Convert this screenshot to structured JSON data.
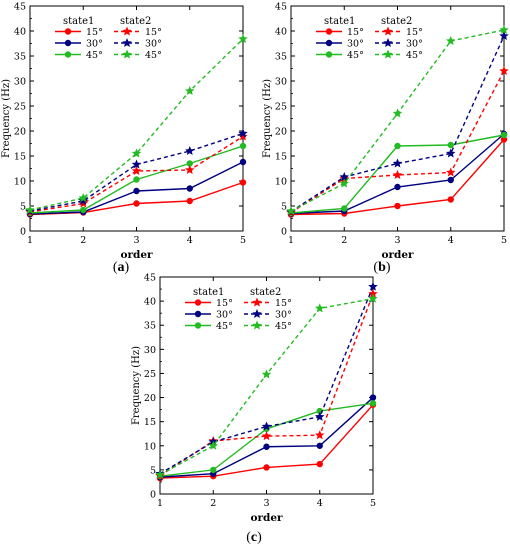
{
  "chart_data": [
    {
      "panel": "(a)",
      "type": "line",
      "xlabel": "order",
      "ylabel": "Frequency (Hz)",
      "x": [
        1,
        2,
        3,
        4,
        5
      ],
      "xlim": [
        1,
        5
      ],
      "ylim": [
        0,
        45
      ],
      "xticks": [
        1,
        2,
        3,
        4,
        5
      ],
      "yticks": [
        0,
        5,
        10,
        15,
        20,
        25,
        30,
        35,
        40,
        45
      ],
      "legend_headers": [
        "state1",
        "state2"
      ],
      "legend_position": "top-left",
      "series": [
        {
          "name": "15°",
          "state": "state1",
          "color": "#ff0000",
          "dash": "solid",
          "marker": "circle",
          "values": [
            3.3,
            3.7,
            5.5,
            6.0,
            9.7
          ]
        },
        {
          "name": "30°",
          "state": "state1",
          "color": "#000080",
          "dash": "solid",
          "marker": "circle",
          "values": [
            3.4,
            3.8,
            8.0,
            8.5,
            13.8
          ]
        },
        {
          "name": "45°",
          "state": "state1",
          "color": "#22bb22",
          "dash": "solid",
          "marker": "circle",
          "values": [
            3.6,
            4.2,
            10.3,
            13.5,
            17.0
          ]
        },
        {
          "name": "15°",
          "state": "state2",
          "color": "#ff0000",
          "dash": "dashed",
          "marker": "star",
          "values": [
            3.8,
            5.5,
            12.0,
            12.2,
            18.9
          ]
        },
        {
          "name": "30°",
          "state": "state2",
          "color": "#000080",
          "dash": "dashed",
          "marker": "star",
          "values": [
            4.0,
            6.0,
            13.3,
            16.0,
            19.5
          ]
        },
        {
          "name": "45°",
          "state": "state2",
          "color": "#22bb22",
          "dash": "dashed",
          "marker": "star",
          "values": [
            4.2,
            6.6,
            15.5,
            28.0,
            38.4
          ]
        }
      ]
    },
    {
      "panel": "(b)",
      "type": "line",
      "xlabel": "order",
      "ylabel": "Frequency (Hz)",
      "x": [
        1,
        2,
        3,
        4,
        5
      ],
      "xlim": [
        1,
        5
      ],
      "ylim": [
        0,
        45
      ],
      "xticks": [
        1,
        2,
        3,
        4,
        5
      ],
      "yticks": [
        0,
        5,
        10,
        15,
        20,
        25,
        30,
        35,
        40,
        45
      ],
      "legend_headers": [
        "state1",
        "state2"
      ],
      "legend_position": "top-left",
      "series": [
        {
          "name": "15°",
          "state": "state1",
          "color": "#ff0000",
          "dash": "solid",
          "marker": "circle",
          "values": [
            3.3,
            3.5,
            5.0,
            6.3,
            18.3
          ]
        },
        {
          "name": "30°",
          "state": "state1",
          "color": "#000080",
          "dash": "solid",
          "marker": "circle",
          "values": [
            3.5,
            4.0,
            8.8,
            10.2,
            19.4
          ]
        },
        {
          "name": "45°",
          "state": "state1",
          "color": "#22bb22",
          "dash": "solid",
          "marker": "circle",
          "values": [
            3.6,
            4.5,
            17.0,
            17.2,
            19.2
          ]
        },
        {
          "name": "15°",
          "state": "state2",
          "color": "#ff0000",
          "dash": "dashed",
          "marker": "star",
          "values": [
            3.7,
            10.5,
            11.2,
            11.7,
            32.0
          ]
        },
        {
          "name": "30°",
          "state": "state2",
          "color": "#000080",
          "dash": "dashed",
          "marker": "star",
          "values": [
            3.9,
            10.8,
            13.5,
            15.5,
            39.0
          ]
        },
        {
          "name": "45°",
          "state": "state2",
          "color": "#22bb22",
          "dash": "dashed",
          "marker": "star",
          "values": [
            4.0,
            9.5,
            23.5,
            38.0,
            40.2
          ]
        }
      ]
    },
    {
      "panel": "(c)",
      "type": "line",
      "xlabel": "order",
      "ylabel": "Frequency (Hz)",
      "x": [
        1,
        2,
        3,
        4,
        5
      ],
      "xlim": [
        1,
        5
      ],
      "ylim": [
        0,
        45
      ],
      "xticks": [
        1,
        2,
        3,
        4,
        5
      ],
      "yticks": [
        0,
        5,
        10,
        15,
        20,
        25,
        30,
        35,
        40,
        45
      ],
      "legend_headers": [
        "state1",
        "state2"
      ],
      "legend_position": "top-left",
      "series": [
        {
          "name": "15°",
          "state": "state1",
          "color": "#ff0000",
          "dash": "solid",
          "marker": "circle",
          "values": [
            3.3,
            3.7,
            5.5,
            6.2,
            18.5
          ]
        },
        {
          "name": "30°",
          "state": "state1",
          "color": "#000080",
          "dash": "solid",
          "marker": "circle",
          "values": [
            3.5,
            4.2,
            9.8,
            10.0,
            20.0
          ]
        },
        {
          "name": "45°",
          "state": "state1",
          "color": "#22bb22",
          "dash": "solid",
          "marker": "circle",
          "values": [
            3.7,
            5.0,
            13.5,
            17.2,
            18.8
          ]
        },
        {
          "name": "15°",
          "state": "state2",
          "color": "#ff0000",
          "dash": "dashed",
          "marker": "star",
          "values": [
            3.8,
            11.0,
            12.0,
            12.2,
            41.5
          ]
        },
        {
          "name": "30°",
          "state": "state2",
          "color": "#000080",
          "dash": "dashed",
          "marker": "star",
          "values": [
            4.2,
            10.8,
            14.0,
            16.0,
            43.0
          ]
        },
        {
          "name": "45°",
          "state": "state2",
          "color": "#22bb22",
          "dash": "dashed",
          "marker": "star",
          "values": [
            4.0,
            10.0,
            24.8,
            38.5,
            40.5
          ]
        }
      ]
    }
  ]
}
